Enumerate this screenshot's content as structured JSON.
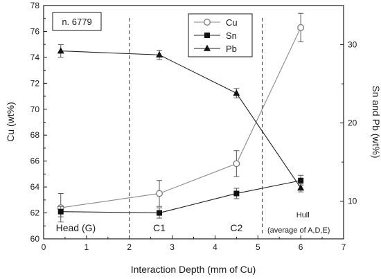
{
  "chart_data": {
    "type": "line",
    "sample_label": "n. 6779",
    "xlabel": "Interaction Depth (mm of Cu)",
    "ylabel_left": "Cu (wt%)",
    "ylabel_right": "Sn and Pb (wt%)",
    "xlim": [
      0,
      7
    ],
    "ylim_left": [
      60,
      78
    ],
    "ylim_right": [
      5.2,
      35
    ],
    "x_ticks": [
      0,
      1,
      2,
      3,
      4,
      5,
      6,
      7
    ],
    "y_left_ticks": [
      60,
      62,
      64,
      66,
      68,
      70,
      72,
      74,
      76,
      78
    ],
    "y_right_ticks": [
      10,
      20,
      30
    ],
    "dividers_x": [
      2,
      5.1
    ],
    "grid": false,
    "legend_position": "top-center",
    "regions": [
      {
        "label": "Head (G)",
        "x": 0.75
      },
      {
        "label": "C1",
        "x": 2.7
      },
      {
        "label": "C2",
        "x": 4.5
      },
      {
        "label": "Hull",
        "x": 6.05,
        "note": "(average of A,D,E)"
      }
    ],
    "series": [
      {
        "name": "Cu",
        "axis": "left",
        "marker": "open-circle",
        "x": [
          0.4,
          2.7,
          4.5,
          6.0
        ],
        "y": [
          62.4,
          63.5,
          65.8,
          76.3
        ],
        "err": [
          1.1,
          1.0,
          1.0,
          1.1
        ]
      },
      {
        "name": "Sn",
        "axis": "left",
        "marker": "filled-square",
        "x": [
          0.4,
          2.7,
          4.5,
          6.0
        ],
        "y": [
          62.1,
          62.0,
          63.5,
          64.5
        ],
        "err": [
          0.4,
          0.4,
          0.4,
          0.4
        ]
      },
      {
        "name": "Pb",
        "axis": "right",
        "marker": "filled-triangle",
        "x": [
          0.4,
          2.7,
          4.5,
          6.0
        ],
        "y": [
          29.2,
          28.7,
          23.8,
          11.7
        ],
        "err": [
          0.8,
          0.6,
          0.6,
          0.5
        ]
      }
    ]
  }
}
